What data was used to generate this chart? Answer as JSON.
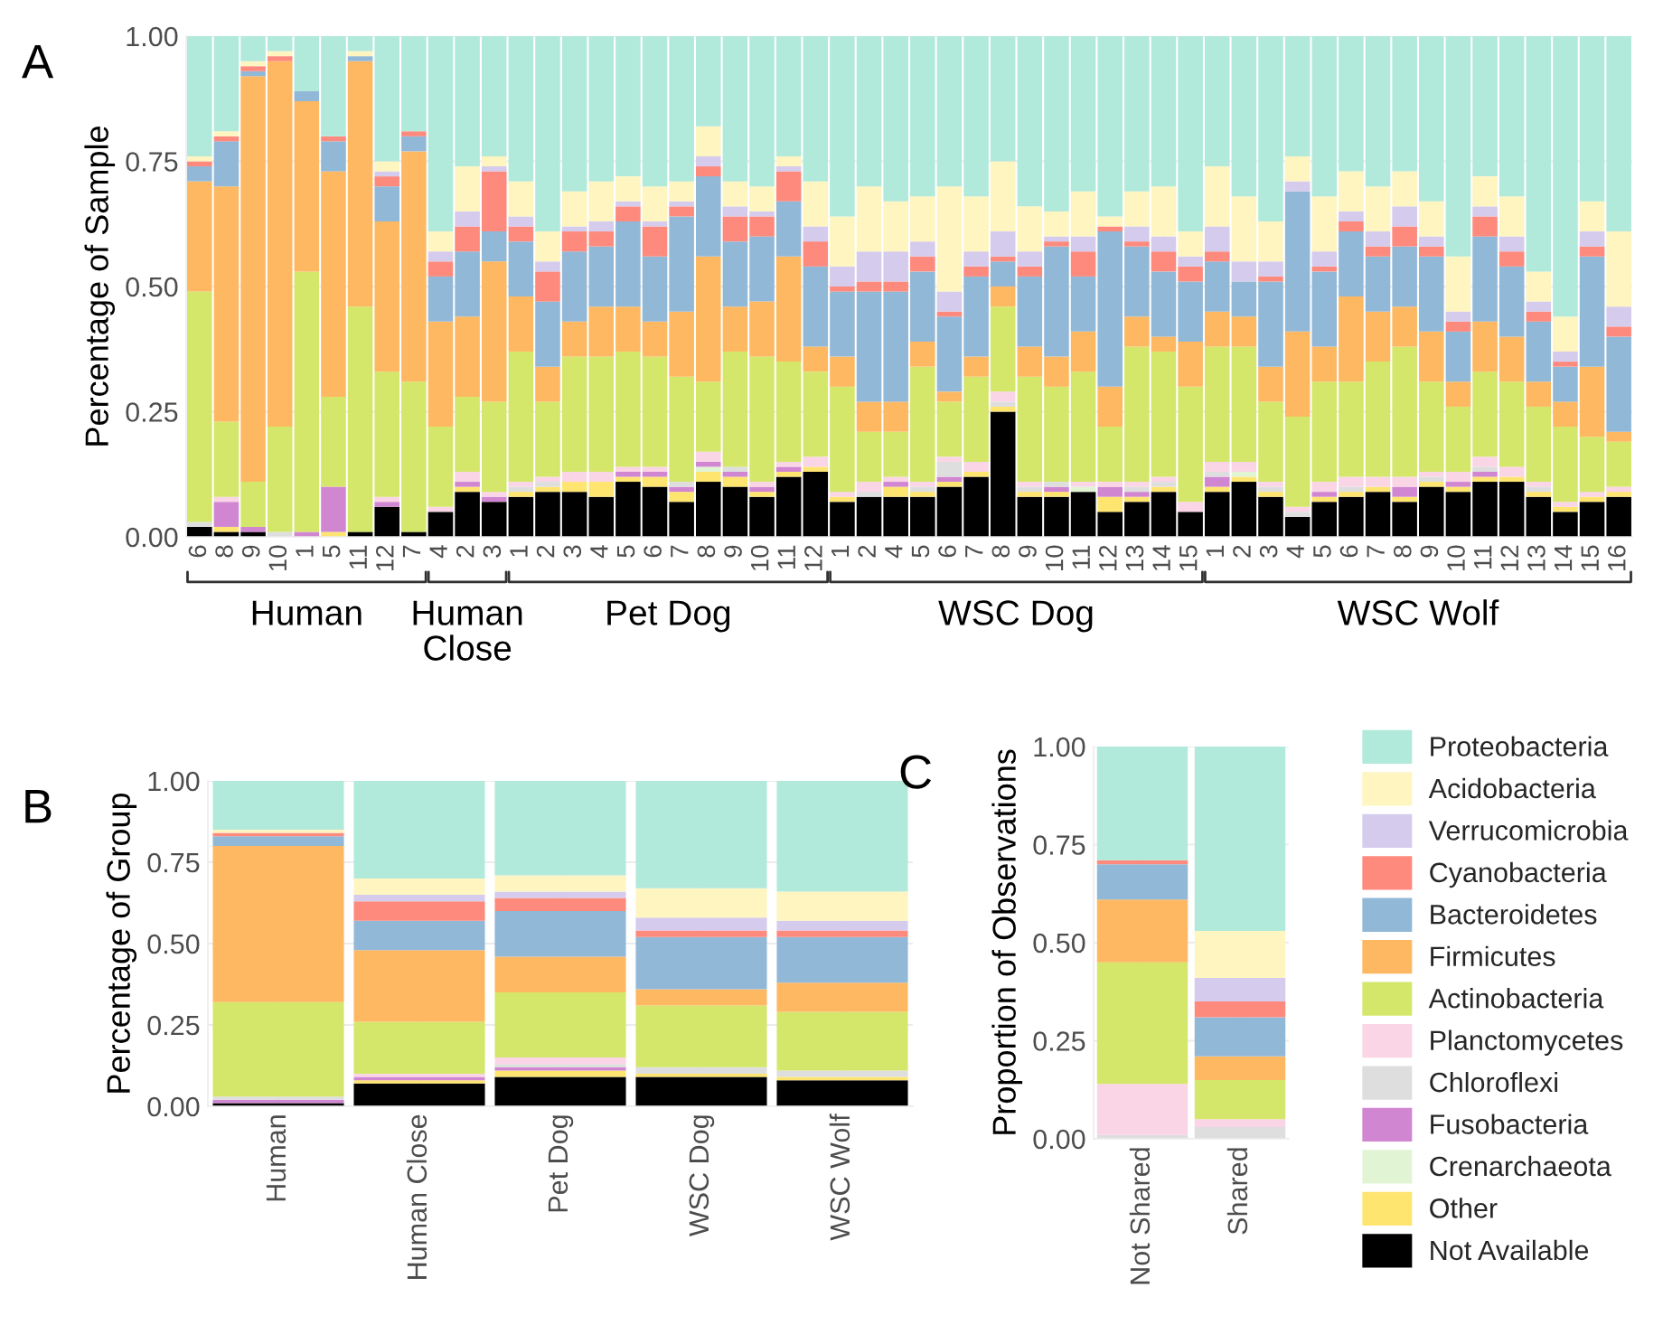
{
  "chart_data": [
    {
      "type": "bar",
      "title": "A",
      "ylabel": "Percentage of Sample",
      "stacked": true,
      "grid": true,
      "ylim": [
        0,
        1
      ],
      "yticks": [
        {
          "value": 0,
          "label": "0.00"
        },
        {
          "value": 0.25,
          "label": "0.25"
        },
        {
          "value": 0.5,
          "label": "0.50"
        },
        {
          "value": 0.75,
          "label": "0.75"
        },
        {
          "value": 1,
          "label": "1.00"
        }
      ],
      "categories": [
        "6",
        "8",
        "9",
        "10",
        "1",
        "5",
        "11",
        "12",
        "7",
        "4",
        "2",
        "3",
        "1",
        "2",
        "3",
        "4",
        "5",
        "6",
        "7",
        "8",
        "9",
        "10",
        "11",
        "12",
        "1",
        "2",
        "4",
        "5",
        "6",
        "7",
        "8",
        "9",
        "10",
        "11",
        "12",
        "13",
        "14",
        "15",
        "1",
        "2",
        "3",
        "4",
        "5",
        "6",
        "7",
        "8",
        "9",
        "10",
        "11",
        "12",
        "13",
        "14",
        "15",
        "16"
      ],
      "annotations": [
        "Human",
        "Human\nClose",
        "Pet Dog",
        "WSC Dog",
        "WSC Wolf"
      ],
      "series": [
        {
          "color": "#000000",
          "values": [
            0.02,
            0.01,
            0.01,
            0,
            0,
            0,
            0.01,
            0.06,
            0.01,
            0.05,
            0.09,
            0.07,
            0.08,
            0.09,
            0.09,
            0.08,
            0.11,
            0.1,
            0.07,
            0.11,
            0.1,
            0.08,
            0.12,
            0.13,
            0.07,
            0.08,
            0.08,
            0.08,
            0.1,
            0.12,
            0.25,
            0.08,
            0.08,
            0.09,
            0.05,
            0.07,
            0.09,
            0.05,
            0.09,
            0.11,
            0.08,
            0.04,
            0.07,
            0.08,
            0.09,
            0.07,
            0.1,
            0.09,
            0.11,
            0.11,
            0.08,
            0.05,
            0.07,
            0.08
          ]
        },
        {
          "color": "#fde570",
          "values": [
            0,
            0.01,
            0,
            0,
            0,
            0.01,
            0,
            0,
            0,
            0,
            0.01,
            0,
            0.01,
            0.01,
            0.02,
            0.03,
            0.01,
            0.02,
            0.02,
            0.02,
            0.02,
            0.01,
            0.01,
            0.01,
            0.01,
            0,
            0.02,
            0.01,
            0.01,
            0.01,
            0.01,
            0.01,
            0.01,
            0,
            0.03,
            0.01,
            0.01,
            0,
            0.01,
            0.01,
            0.01,
            0,
            0.01,
            0.01,
            0.01,
            0.01,
            0.01,
            0.01,
            0.01,
            0.01,
            0.01,
            0.01,
            0.01,
            0.01
          ]
        },
        {
          "color": "#e1f5d4",
          "values": [
            0,
            0,
            0,
            0,
            0,
            0,
            0,
            0,
            0,
            0,
            0,
            0,
            0,
            0,
            0,
            0,
            0,
            0,
            0,
            0.01,
            0,
            0,
            0,
            0,
            0,
            0,
            0,
            0,
            0,
            0,
            0,
            0,
            0,
            0.01,
            0,
            0,
            0,
            0,
            0,
            0.01,
            0,
            0,
            0,
            0,
            0,
            0,
            0,
            0,
            0,
            0,
            0,
            0,
            0,
            0
          ]
        },
        {
          "color": "#d186d2",
          "values": [
            0,
            0.05,
            0.01,
            0,
            0.01,
            0.09,
            0,
            0.01,
            0,
            0,
            0.01,
            0.01,
            0,
            0,
            0,
            0,
            0.01,
            0.01,
            0.01,
            0.01,
            0.01,
            0.01,
            0.01,
            0,
            0,
            0,
            0.01,
            0,
            0.01,
            0,
            0,
            0,
            0.01,
            0,
            0.02,
            0.01,
            0,
            0,
            0.02,
            0,
            0,
            0,
            0.01,
            0,
            0,
            0.02,
            0,
            0.01,
            0.01,
            0,
            0,
            0,
            0,
            0
          ]
        },
        {
          "color": "#dedede",
          "values": [
            0.01,
            0,
            0,
            0.01,
            0,
            0,
            0,
            0,
            0,
            0,
            0,
            0,
            0.01,
            0.01,
            0,
            0,
            0,
            0,
            0.01,
            0,
            0.01,
            0,
            0,
            0,
            0,
            0.01,
            0,
            0.01,
            0.03,
            0,
            0.01,
            0.01,
            0.01,
            0,
            0,
            0.01,
            0.01,
            0,
            0.01,
            0,
            0.01,
            0.01,
            0,
            0.01,
            0,
            0,
            0.01,
            0,
            0.01,
            0,
            0.01,
            0,
            0,
            0
          ]
        },
        {
          "color": "#fad5e6",
          "values": [
            0,
            0.01,
            0,
            0,
            0,
            0,
            0,
            0.01,
            0,
            0.01,
            0.02,
            0.01,
            0.01,
            0.01,
            0.02,
            0.02,
            0.01,
            0.01,
            0,
            0.02,
            0,
            0.01,
            0.01,
            0.02,
            0.01,
            0.02,
            0.01,
            0.01,
            0.01,
            0.02,
            0.02,
            0.01,
            0,
            0.01,
            0.01,
            0.01,
            0.01,
            0.02,
            0.02,
            0.02,
            0.01,
            0.01,
            0.02,
            0.02,
            0.02,
            0.02,
            0.01,
            0.02,
            0.02,
            0.02,
            0.01,
            0.01,
            0.01,
            0.01
          ]
        },
        {
          "color": "#d4e76a",
          "values": [
            0.46,
            0.15,
            0.09,
            0.21,
            0.52,
            0.18,
            0.45,
            0.25,
            0.3,
            0.16,
            0.15,
            0.18,
            0.26,
            0.15,
            0.23,
            0.23,
            0.23,
            0.22,
            0.21,
            0.14,
            0.23,
            0.25,
            0.2,
            0.17,
            0.21,
            0.1,
            0.09,
            0.23,
            0.11,
            0.17,
            0.17,
            0.21,
            0.19,
            0.22,
            0.11,
            0.27,
            0.25,
            0.23,
            0.23,
            0.23,
            0.16,
            0.18,
            0.2,
            0.19,
            0.23,
            0.26,
            0.18,
            0.13,
            0.17,
            0.17,
            0.15,
            0.15,
            0.11,
            0.09
          ]
        },
        {
          "color": "#feb862",
          "values": [
            0.22,
            0.47,
            0.81,
            0.73,
            0.34,
            0.45,
            0.49,
            0.3,
            0.46,
            0.21,
            0.16,
            0.28,
            0.11,
            0.07,
            0.07,
            0.1,
            0.09,
            0.07,
            0.13,
            0.25,
            0.09,
            0.11,
            0.21,
            0.05,
            0.06,
            0.06,
            0.06,
            0.05,
            0.02,
            0.04,
            0.04,
            0.06,
            0.06,
            0.08,
            0.08,
            0.06,
            0.03,
            0.09,
            0.07,
            0.06,
            0.07,
            0.17,
            0.07,
            0.17,
            0.1,
            0.08,
            0.1,
            0.05,
            0.1,
            0.09,
            0.05,
            0.05,
            0.14,
            0.02
          ]
        },
        {
          "color": "#92b8d8",
          "values": [
            0.03,
            0.09,
            0.01,
            0,
            0.02,
            0.06,
            0.01,
            0.07,
            0.03,
            0.09,
            0.13,
            0.06,
            0.11,
            0.13,
            0.14,
            0.12,
            0.17,
            0.13,
            0.19,
            0.16,
            0.13,
            0.13,
            0.11,
            0.16,
            0.13,
            0.22,
            0.22,
            0.14,
            0.15,
            0.16,
            0.05,
            0.14,
            0.22,
            0.11,
            0.31,
            0.14,
            0.13,
            0.12,
            0.1,
            0.07,
            0.17,
            0.28,
            0.15,
            0.13,
            0.11,
            0.12,
            0.15,
            0.1,
            0.17,
            0.14,
            0.12,
            0.07,
            0.22,
            0.19
          ]
        },
        {
          "color": "#fd8a7d",
          "values": [
            0.01,
            0.01,
            0.01,
            0.01,
            0,
            0.01,
            0,
            0.02,
            0.01,
            0.03,
            0.05,
            0.12,
            0.03,
            0.06,
            0.04,
            0.03,
            0.03,
            0.06,
            0.02,
            0.02,
            0.05,
            0.04,
            0.06,
            0.05,
            0.01,
            0.02,
            0.02,
            0.03,
            0.01,
            0.02,
            0.01,
            0.02,
            0.01,
            0.05,
            0.01,
            0.01,
            0.04,
            0.03,
            0.02,
            0,
            0.01,
            0,
            0.01,
            0.02,
            0.02,
            0.04,
            0.02,
            0.02,
            0.04,
            0.03,
            0.02,
            0.01,
            0.02,
            0.02
          ]
        },
        {
          "color": "#d5cbec",
          "values": [
            0,
            0,
            0,
            0,
            0,
            0,
            0,
            0.01,
            0,
            0.02,
            0.03,
            0.01,
            0.02,
            0.02,
            0.01,
            0.02,
            0.01,
            0.01,
            0.01,
            0.02,
            0.02,
            0.01,
            0.01,
            0.03,
            0.04,
            0.06,
            0.06,
            0.03,
            0.04,
            0.03,
            0.05,
            0.03,
            0.01,
            0.03,
            0,
            0.03,
            0.03,
            0.02,
            0.05,
            0.04,
            0.03,
            0.02,
            0.03,
            0.02,
            0.03,
            0.04,
            0.02,
            0.02,
            0.02,
            0.03,
            0.02,
            0.02,
            0.03,
            0.04
          ]
        },
        {
          "color": "#fef5c1",
          "values": [
            0.01,
            0.01,
            0.01,
            0.01,
            0,
            0,
            0.01,
            0.02,
            0,
            0.04,
            0.09,
            0.02,
            0.07,
            0.06,
            0.07,
            0.08,
            0.05,
            0.07,
            0.04,
            0.06,
            0.05,
            0.05,
            0.02,
            0.09,
            0.1,
            0.13,
            0.1,
            0.09,
            0.21,
            0.11,
            0.14,
            0.09,
            0.05,
            0.09,
            0.02,
            0.07,
            0.1,
            0.05,
            0.12,
            0.13,
            0.08,
            0.05,
            0.11,
            0.08,
            0.09,
            0.07,
            0.07,
            0.11,
            0.06,
            0.08,
            0.06,
            0.07,
            0.06,
            0.15
          ]
        },
        {
          "color": "#b1eadb",
          "values": [
            0.24,
            0.19,
            0.05,
            0.03,
            0.11,
            0.2,
            0.03,
            0.25,
            0.19,
            0.39,
            0.26,
            0.24,
            0.29,
            0.39,
            0.31,
            0.29,
            0.28,
            0.3,
            0.29,
            0.18,
            0.29,
            0.3,
            0.24,
            0.29,
            0.36,
            0.3,
            0.33,
            0.32,
            0.3,
            0.32,
            0.25,
            0.34,
            0.35,
            0.31,
            0.36,
            0.31,
            0.3,
            0.39,
            0.26,
            0.32,
            0.37,
            0.24,
            0.32,
            0.27,
            0.3,
            0.27,
            0.33,
            0.44,
            0.28,
            0.32,
            0.47,
            0.56,
            0.33,
            0.39
          ]
        }
      ]
    },
    {
      "type": "bar",
      "title": "B",
      "ylabel": "Percentage of Group",
      "stacked": true,
      "grid": true,
      "ylim": [
        0,
        1
      ],
      "yticks": [
        {
          "value": 0,
          "label": "0.00"
        },
        {
          "value": 0.25,
          "label": "0.25"
        },
        {
          "value": 0.5,
          "label": "0.50"
        },
        {
          "value": 0.75,
          "label": "0.75"
        },
        {
          "value": 1,
          "label": "1.00"
        }
      ],
      "categories": [
        "Human",
        "Human Close",
        "Pet Dog",
        "WSC Dog",
        "WSC Wolf"
      ],
      "series": [
        {
          "color": "#000000",
          "values": [
            0.01,
            0.07,
            0.09,
            0.09,
            0.08
          ]
        },
        {
          "color": "#fde570",
          "values": [
            0,
            0.01,
            0.02,
            0.01,
            0.01
          ]
        },
        {
          "color": "#e1f5d4",
          "values": [
            0,
            0,
            0,
            0,
            0
          ]
        },
        {
          "color": "#d186d2",
          "values": [
            0.01,
            0.01,
            0.01,
            0,
            0
          ]
        },
        {
          "color": "#dedede",
          "values": [
            0.01,
            0,
            0.01,
            0.02,
            0.02
          ]
        },
        {
          "color": "#fad5e6",
          "values": [
            0,
            0.01,
            0.02,
            0,
            0
          ]
        },
        {
          "color": "#d4e76a",
          "values": [
            0.29,
            0.16,
            0.2,
            0.19,
            0.18
          ]
        },
        {
          "color": "#feb862",
          "values": [
            0.48,
            0.22,
            0.11,
            0.05,
            0.09
          ]
        },
        {
          "color": "#92b8d8",
          "values": [
            0.03,
            0.09,
            0.14,
            0.16,
            0.14
          ]
        },
        {
          "color": "#fd8a7d",
          "values": [
            0.01,
            0.06,
            0.04,
            0.02,
            0.02
          ]
        },
        {
          "color": "#d5cbec",
          "values": [
            0,
            0.02,
            0.02,
            0.04,
            0.03
          ]
        },
        {
          "color": "#fef5c1",
          "values": [
            0.01,
            0.05,
            0.05,
            0.09,
            0.09
          ]
        },
        {
          "color": "#b1eadb",
          "values": [
            0.15,
            0.3,
            0.29,
            0.33,
            0.34
          ]
        }
      ]
    },
    {
      "type": "bar",
      "title": "C",
      "ylabel": "Proportion of Observations",
      "stacked": true,
      "grid": true,
      "legend": "right",
      "ylim": [
        0,
        1
      ],
      "yticks": [
        {
          "value": 0,
          "label": "0.00"
        },
        {
          "value": 0.25,
          "label": "0.25"
        },
        {
          "value": 0.5,
          "label": "0.50"
        },
        {
          "value": 0.75,
          "label": "0.75"
        },
        {
          "value": 1,
          "label": "1.00"
        }
      ],
      "categories": [
        "Not Shared",
        "Shared"
      ],
      "series": [
        {
          "name": "Not Available",
          "color": "#000000",
          "values": [
            0,
            0
          ]
        },
        {
          "name": "Other",
          "color": "#fde570",
          "values": [
            0,
            0
          ]
        },
        {
          "name": "Crenarchaeota",
          "color": "#e1f5d4",
          "values": [
            0,
            0
          ]
        },
        {
          "name": "Fusobacteria",
          "color": "#d186d2",
          "values": [
            0,
            0
          ]
        },
        {
          "name": "Chloroflexi",
          "color": "#dedede",
          "values": [
            0.01,
            0.03
          ]
        },
        {
          "name": "Planctomycetes",
          "color": "#fad5e6",
          "values": [
            0.13,
            0.02
          ]
        },
        {
          "name": "Actinobacteria",
          "color": "#d4e76a",
          "values": [
            0.31,
            0.1
          ]
        },
        {
          "name": "Firmicutes",
          "color": "#feb862",
          "values": [
            0.16,
            0.06
          ]
        },
        {
          "name": "Bacteroidetes",
          "color": "#92b8d8",
          "values": [
            0.09,
            0.1
          ]
        },
        {
          "name": "Cyanobacteria",
          "color": "#fd8a7d",
          "values": [
            0.01,
            0.04
          ]
        },
        {
          "name": "Verrucomicrobia",
          "color": "#d5cbec",
          "values": [
            0,
            0.06
          ]
        },
        {
          "name": "Acidobacteria",
          "color": "#fef5c1",
          "values": [
            0,
            0.12
          ]
        },
        {
          "name": "Proteobacteria",
          "color": "#b1eadb",
          "values": [
            0.29,
            0.47
          ]
        }
      ]
    }
  ]
}
